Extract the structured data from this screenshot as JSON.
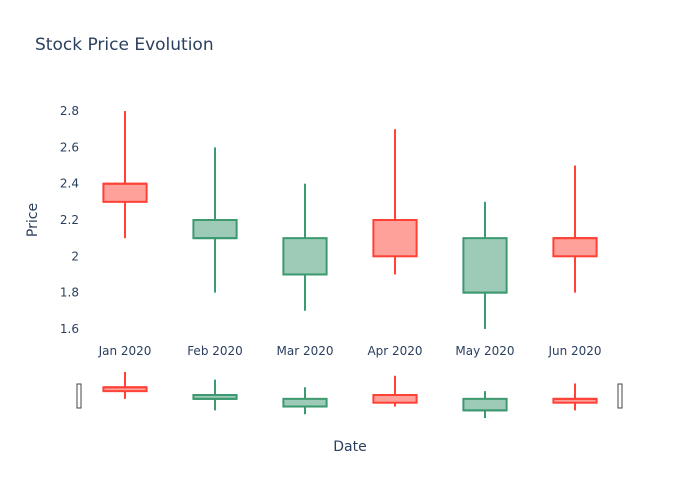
{
  "chart_data": {
    "type": "candlestick",
    "title": "Stock Price Evolution",
    "xlabel": "Date",
    "ylabel": "Price",
    "ylim": [
      1.55,
      2.85
    ],
    "yticks": [
      1.6,
      1.8,
      2,
      2.2,
      2.4,
      2.6,
      2.8
    ],
    "ytick_labels": [
      "1.6",
      "1.8",
      "2",
      "2.2",
      "2.4",
      "2.6",
      "2.8"
    ],
    "categories": [
      "Jan 2020",
      "Feb 2020",
      "Mar 2020",
      "Apr 2020",
      "May 2020",
      "Jun 2020"
    ],
    "candles": [
      {
        "date": "Jan 2020",
        "open": 2.3,
        "high": 2.8,
        "low": 2.1,
        "close": 2.4
      },
      {
        "date": "Feb 2020",
        "open": 2.2,
        "high": 2.6,
        "low": 1.8,
        "close": 2.1
      },
      {
        "date": "Mar 2020",
        "open": 2.1,
        "high": 2.4,
        "low": 1.7,
        "close": 1.9
      },
      {
        "date": "Apr 2020",
        "open": 2.0,
        "high": 2.7,
        "low": 1.9,
        "close": 2.2
      },
      {
        "date": "May 2020",
        "open": 2.1,
        "high": 2.3,
        "low": 1.6,
        "close": 1.8
      },
      {
        "date": "Jun 2020",
        "open": 2.0,
        "high": 2.5,
        "low": 1.8,
        "close": 2.1
      }
    ],
    "colors": {
      "increasing": "#ff4136",
      "increasing_fill": "#ffa19b",
      "decreasing": "#3d9970",
      "decreasing_fill": "#9ecbb7"
    },
    "rangeslider": true,
    "grid": false,
    "legend": "none"
  }
}
